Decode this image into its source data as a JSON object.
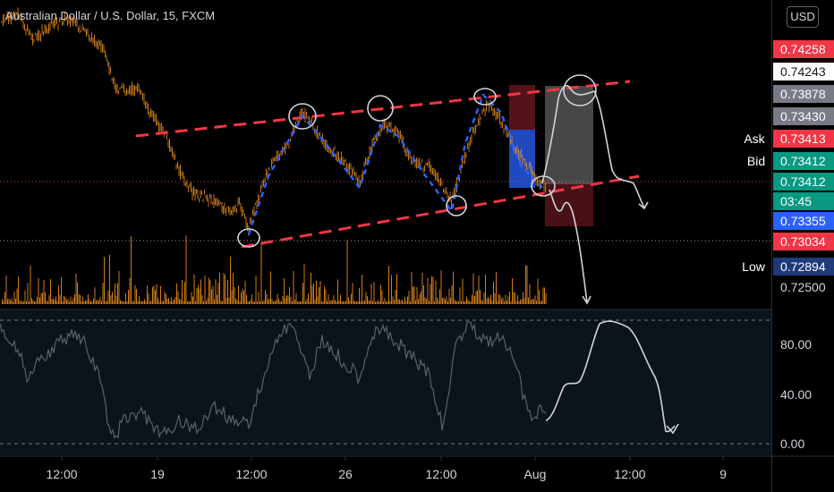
{
  "header": {
    "title": "Australian Dollar / U.S. Dollar, 15, FXCM"
  },
  "currency_button": "USD",
  "price_labels": [
    {
      "id": "price-label-0.74258",
      "text": "0.74258",
      "bg": "#f23645",
      "fg": "#ffffff"
    },
    {
      "id": "price-label-0.74243",
      "text": "0.74243",
      "bg": "#ffffff",
      "fg": "#131722"
    },
    {
      "id": "price-label-0.73878",
      "text": "0.73878",
      "bg": "#787b86",
      "fg": "#ffffff"
    },
    {
      "id": "price-label-0.73430",
      "text": "0.73430",
      "bg": "#787b86",
      "fg": "#ffffff"
    },
    {
      "id": "price-label-ask",
      "text": "0.73413",
      "bg": "#f23645",
      "fg": "#ffffff"
    },
    {
      "id": "price-label-bid",
      "text": "0.73412",
      "bg": "#089981",
      "fg": "#ffffff"
    },
    {
      "id": "price-label-last",
      "text": "0.73412",
      "bg": "#089981",
      "fg": "#ffffff"
    },
    {
      "id": "price-label-0.73355",
      "text": "0.73355",
      "bg": "#2962ff",
      "fg": "#ffffff"
    },
    {
      "id": "price-label-0.73034",
      "text": "0.73034",
      "bg": "#f23645",
      "fg": "#ffffff"
    },
    {
      "id": "price-label-low",
      "text": "0.72894",
      "bg": "#1e3a78",
      "fg": "#ffffff"
    },
    {
      "id": "price-label-0.72500",
      "text": "0.72500",
      "bg": "",
      "fg": "#d1d4dc"
    }
  ],
  "countdown": "03:45",
  "ask_tag": {
    "label": "Ask",
    "bg": "#f23645"
  },
  "bid_tag": {
    "label": "Bid",
    "bg": "#089981"
  },
  "low_tag": {
    "label": "Low",
    "bg": "#1e3a78"
  },
  "oscillator_axis": [
    "80.00",
    "40.00",
    "0.00"
  ],
  "time_axis": [
    "12:00",
    "19",
    "12:00",
    "26",
    "12:00",
    "Aug",
    "12:00",
    "9"
  ],
  "colors": {
    "candle": "#f7931a",
    "trendline": "#f23645",
    "zigzag": "#2962ff",
    "drawing": "#d1d4dc",
    "oscillator": "#5d606b",
    "osc_bg": "#0b141d"
  }
}
